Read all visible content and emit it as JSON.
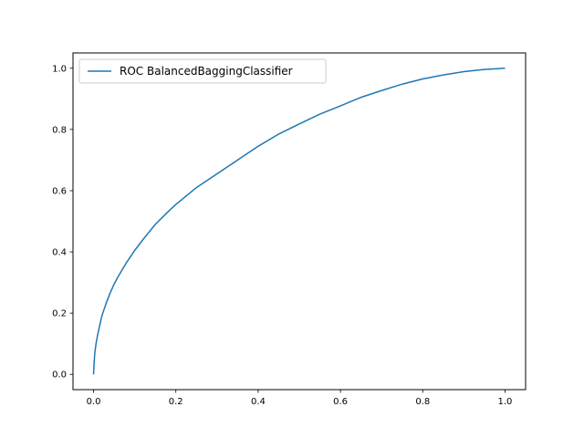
{
  "chart_data": {
    "type": "line",
    "title": "",
    "xlabel": "",
    "ylabel": "",
    "xlim": [
      -0.05,
      1.05
    ],
    "ylim": [
      -0.05,
      1.05
    ],
    "xticks": [
      "0.0",
      "0.2",
      "0.4",
      "0.6",
      "0.8",
      "1.0"
    ],
    "yticks": [
      "0.0",
      "0.2",
      "0.4",
      "0.6",
      "0.8",
      "1.0"
    ],
    "grid": false,
    "legend_position": "top-left",
    "series": [
      {
        "name": "ROC BalancedBaggingClassifier",
        "color": "#1f77b4",
        "x": [
          0.0,
          0.001,
          0.003,
          0.006,
          0.01,
          0.015,
          0.02,
          0.03,
          0.04,
          0.05,
          0.06,
          0.08,
          0.1,
          0.12,
          0.15,
          0.18,
          0.2,
          0.25,
          0.3,
          0.35,
          0.4,
          0.45,
          0.5,
          0.55,
          0.6,
          0.65,
          0.7,
          0.75,
          0.8,
          0.85,
          0.9,
          0.95,
          1.0
        ],
        "y": [
          0.0,
          0.03,
          0.07,
          0.1,
          0.13,
          0.16,
          0.19,
          0.23,
          0.265,
          0.295,
          0.32,
          0.365,
          0.405,
          0.44,
          0.49,
          0.53,
          0.555,
          0.61,
          0.655,
          0.7,
          0.745,
          0.785,
          0.818,
          0.85,
          0.877,
          0.905,
          0.927,
          0.948,
          0.965,
          0.978,
          0.989,
          0.996,
          1.0
        ]
      }
    ]
  }
}
